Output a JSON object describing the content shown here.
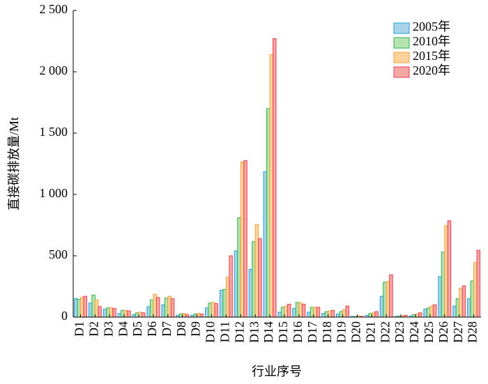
{
  "chart_data": {
    "type": "bar",
    "y_label": "直接碳排放量/Mt",
    "x_label": "行业序号",
    "categories": [
      "D1",
      "D2",
      "D3",
      "D4",
      "D5",
      "D6",
      "D7",
      "D8",
      "D9",
      "D10",
      "D11",
      "D12",
      "D13",
      "D14",
      "D15",
      "D16",
      "D17",
      "D18",
      "D19",
      "D20",
      "D21",
      "D22",
      "D23",
      "D24",
      "D25",
      "D26",
      "D27",
      "D28"
    ],
    "series": [
      {
        "name": "2005年",
        "color": "#a9d3e8",
        "edge_color": "#1fa0d8",
        "values": [
          150,
          115,
          65,
          30,
          20,
          85,
          100,
          15,
          15,
          75,
          220,
          540,
          390,
          1185,
          40,
          70,
          40,
          30,
          25,
          5,
          15,
          170,
          5,
          10,
          65,
          330,
          90,
          150
        ]
      },
      {
        "name": "2010年",
        "color": "#b5e3b0",
        "edge_color": "#2db24a",
        "values": [
          145,
          180,
          75,
          55,
          35,
          140,
          155,
          25,
          25,
          115,
          225,
          810,
          615,
          1700,
          80,
          120,
          80,
          45,
          45,
          5,
          30,
          285,
          10,
          20,
          75,
          530,
          150,
          295
        ]
      },
      {
        "name": "2015年",
        "color": "#fcd39a",
        "edge_color": "#f7a13a",
        "values": [
          160,
          140,
          75,
          55,
          40,
          185,
          170,
          30,
          30,
          120,
          325,
          1265,
          755,
          2140,
          90,
          115,
          80,
          50,
          60,
          10,
          35,
          290,
          10,
          25,
          90,
          745,
          235,
          445
        ]
      },
      {
        "name": "2020年",
        "color": "#f7a6a6",
        "edge_color": "#e8404a",
        "values": [
          170,
          85,
          70,
          50,
          35,
          160,
          150,
          20,
          25,
          110,
          500,
          1275,
          640,
          2270,
          105,
          105,
          80,
          55,
          90,
          5,
          45,
          345,
          15,
          35,
          100,
          785,
          255,
          545
        ]
      }
    ],
    "ylim": [
      0,
      2500
    ],
    "yticks": [
      0,
      500,
      {
        "value": 1000,
        "label": "1 000"
      },
      {
        "value": 1500,
        "label": "1 500"
      },
      {
        "value": 2000,
        "label": "2 000"
      },
      {
        "value": 2500,
        "label": "2 500"
      }
    ],
    "legend": "upper right"
  }
}
